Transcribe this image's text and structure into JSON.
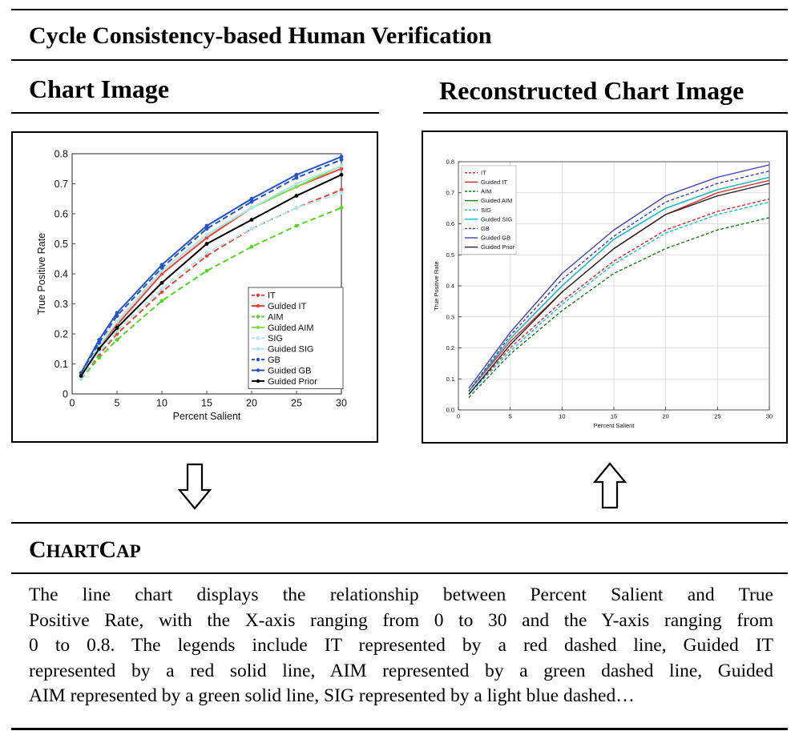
{
  "header": {
    "title": "Cycle Consistency-based Human Verification",
    "left_title": "Chart Image",
    "right_title": "Reconstructed Chart Image"
  },
  "section": {
    "name_prefix_1": "C",
    "name_rest_1": "HART",
    "name_prefix_2": "C",
    "name_rest_2": "AP"
  },
  "caption_lines": [
    "The line chart displays the relationship between Percent Salient and True",
    "Positive Rate, with the X-axis ranging from 0 to 30 and the Y-axis ranging from",
    "0 to 0.8. The legends include IT represented by a red dashed line, Guided IT",
    "represented by a red solid line, AIM represented by a green dashed line, Guided",
    "AIM represented by a green solid line, SIG represented by a light blue dashed…"
  ],
  "icons": {
    "down": "down-arrow-icon",
    "up": "up-arrow-icon"
  },
  "chart_data": [
    {
      "type": "line",
      "xlabel": "Percent Salient",
      "ylabel": "True Positive Rate",
      "xlim": [
        0,
        30
      ],
      "ylim": [
        0,
        0.8
      ],
      "xticks": [
        0,
        5,
        10,
        15,
        20,
        25,
        30
      ],
      "xtick_labels": [
        "0",
        "5",
        "10",
        "15",
        "20",
        "25",
        "30"
      ],
      "yticks": [
        0,
        0.1,
        0.2,
        0.3,
        0.4,
        0.5,
        0.6,
        0.7,
        0.8
      ],
      "ytick_labels": [
        "0",
        "0.1",
        "0.2",
        "0.3",
        "0.4",
        "0.5",
        "0.6",
        "0.7",
        "0.8"
      ],
      "grid": false,
      "legend_position": "bottom-right",
      "x": [
        1,
        3,
        5,
        10,
        15,
        20,
        25,
        30
      ],
      "series": [
        {
          "name": "IT",
          "color": "#e8413c",
          "dash": true,
          "markers": true,
          "values": [
            0.05,
            0.13,
            0.2,
            0.34,
            0.46,
            0.55,
            0.62,
            0.68
          ]
        },
        {
          "name": "Guided IT",
          "color": "#e8413c",
          "dash": false,
          "markers": true,
          "values": [
            0.06,
            0.16,
            0.23,
            0.4,
            0.52,
            0.62,
            0.69,
            0.75
          ]
        },
        {
          "name": "AIM",
          "color": "#55d61e",
          "dash": true,
          "markers": true,
          "values": [
            0.05,
            0.12,
            0.18,
            0.31,
            0.41,
            0.49,
            0.56,
            0.62
          ]
        },
        {
          "name": "Guided AIM",
          "color": "#7ee04c",
          "dash": false,
          "markers": true,
          "values": [
            0.06,
            0.16,
            0.24,
            0.41,
            0.53,
            0.62,
            0.69,
            0.76
          ]
        },
        {
          "name": "SIG",
          "color": "#aee9e6",
          "dash": true,
          "markers": true,
          "values": [
            0.05,
            0.14,
            0.21,
            0.35,
            0.47,
            0.55,
            0.62,
            0.67
          ]
        },
        {
          "name": "Guided SIG",
          "color": "#aee9e6",
          "dash": false,
          "markers": true,
          "values": [
            0.06,
            0.16,
            0.24,
            0.41,
            0.53,
            0.62,
            0.7,
            0.76
          ]
        },
        {
          "name": "GB",
          "color": "#2452c8",
          "dash": true,
          "markers": true,
          "values": [
            0.07,
            0.17,
            0.26,
            0.42,
            0.55,
            0.64,
            0.72,
            0.78
          ]
        },
        {
          "name": "Guided GB",
          "color": "#2452c8",
          "dash": false,
          "markers": true,
          "values": [
            0.07,
            0.18,
            0.27,
            0.43,
            0.56,
            0.65,
            0.73,
            0.79
          ]
        },
        {
          "name": "Guided Prior",
          "color": "#000000",
          "dash": false,
          "markers": true,
          "values": [
            0.06,
            0.15,
            0.22,
            0.37,
            0.5,
            0.58,
            0.66,
            0.73
          ]
        }
      ]
    },
    {
      "type": "line",
      "xlabel": "Percent Salient",
      "ylabel": "True Positive Rate",
      "xlim": [
        0,
        30
      ],
      "ylim": [
        0,
        0.8
      ],
      "xticks": [
        0,
        5,
        10,
        15,
        20,
        25,
        30
      ],
      "xtick_labels": [
        "0",
        "5",
        "10",
        "15",
        "20",
        "25",
        "30"
      ],
      "yticks": [
        0,
        0.1,
        0.2,
        0.3,
        0.4,
        0.5,
        0.6,
        0.7,
        0.8
      ],
      "ytick_labels": [
        "0.0",
        "0.1",
        "0.2",
        "0.3",
        "0.4",
        "0.5",
        "0.6",
        "0.7",
        "0.8"
      ],
      "grid": true,
      "legend_position": "top-left",
      "x": [
        1,
        5,
        10,
        15,
        20,
        25,
        30
      ],
      "series": [
        {
          "name": "IT",
          "color": "#d62728",
          "dash": true,
          "markers": false,
          "values": [
            0.05,
            0.2,
            0.35,
            0.48,
            0.58,
            0.64,
            0.68
          ]
        },
        {
          "name": "Guided IT",
          "color": "#d62728",
          "dash": false,
          "markers": false,
          "values": [
            0.06,
            0.22,
            0.38,
            0.52,
            0.63,
            0.7,
            0.74
          ]
        },
        {
          "name": "AIM",
          "color": "#1a7a1a",
          "dash": true,
          "markers": false,
          "values": [
            0.04,
            0.18,
            0.32,
            0.44,
            0.52,
            0.58,
            0.62
          ]
        },
        {
          "name": "Guided AIM",
          "color": "#1a7a1a",
          "dash": false,
          "markers": false,
          "values": [
            0.06,
            0.23,
            0.4,
            0.55,
            0.65,
            0.71,
            0.75
          ]
        },
        {
          "name": "SIG",
          "color": "#17becf",
          "dash": true,
          "markers": false,
          "values": [
            0.05,
            0.19,
            0.34,
            0.47,
            0.57,
            0.63,
            0.67
          ]
        },
        {
          "name": "Guided SIG",
          "color": "#17becf",
          "dash": false,
          "markers": false,
          "values": [
            0.06,
            0.23,
            0.4,
            0.55,
            0.65,
            0.71,
            0.75
          ]
        },
        {
          "name": "GB",
          "color": "#3f3fb8",
          "dash": true,
          "markers": false,
          "values": [
            0.06,
            0.24,
            0.42,
            0.56,
            0.67,
            0.73,
            0.77
          ]
        },
        {
          "name": "Guided GB",
          "color": "#3f3fb8",
          "dash": false,
          "markers": false,
          "values": [
            0.07,
            0.25,
            0.44,
            0.58,
            0.69,
            0.75,
            0.79
          ]
        },
        {
          "name": "Guided Prior",
          "color": "#222222",
          "dash": false,
          "markers": false,
          "values": [
            0.05,
            0.21,
            0.38,
            0.52,
            0.63,
            0.69,
            0.73
          ]
        }
      ]
    }
  ]
}
